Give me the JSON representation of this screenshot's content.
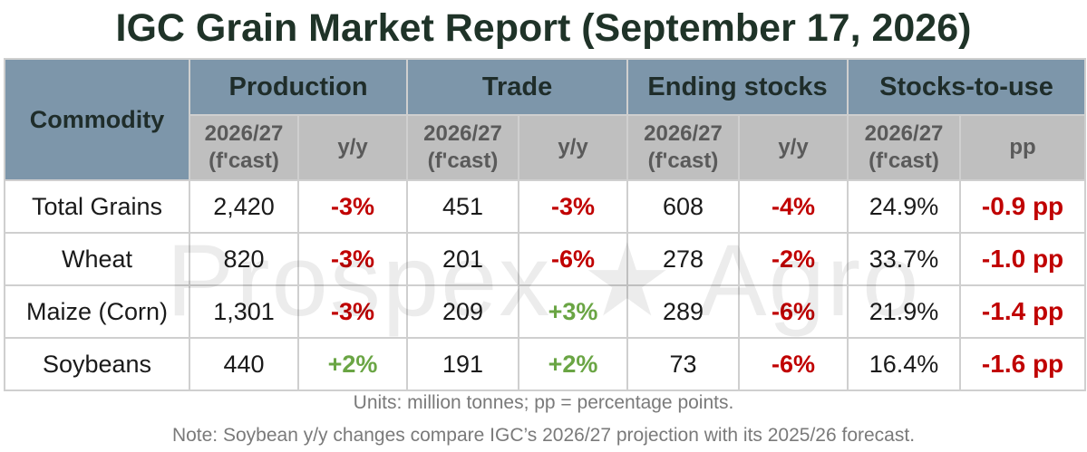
{
  "title": "IGC Grain Market Report (September 17, 2026)",
  "watermark": "Prospex ★ Agro",
  "table": {
    "commodity_header": "Commodity",
    "groups": [
      "Production",
      "Trade",
      "Ending stocks",
      "Stocks-to-use"
    ],
    "sub_forecast_line1": "2026/27",
    "sub_forecast_line2": "(f'cast)",
    "sub_change_yy": "y/y",
    "sub_change_pp": "pp",
    "rows": [
      {
        "name": "Total Grains",
        "production": "2,420",
        "production_yy": "-3%",
        "trade": "451",
        "trade_yy": "-3%",
        "stocks": "608",
        "stocks_yy": "-4%",
        "stu": "24.9%",
        "stu_pp": "-0.9 pp"
      },
      {
        "name": "Wheat",
        "production": "820",
        "production_yy": "-3%",
        "trade": "201",
        "trade_yy": "-6%",
        "stocks": "278",
        "stocks_yy": "-2%",
        "stu": "33.7%",
        "stu_pp": "-1.0 pp"
      },
      {
        "name": "Maize (Corn)",
        "production": "1,301",
        "production_yy": "-3%",
        "trade": "209",
        "trade_yy": "+3%",
        "stocks": "289",
        "stocks_yy": "-6%",
        "stu": "21.9%",
        "stu_pp": "-1.4 pp"
      },
      {
        "name": "Soybeans",
        "production": "440",
        "production_yy": "+2%",
        "trade": "191",
        "trade_yy": "+2%",
        "stocks": "73",
        "stocks_yy": "-6%",
        "stu": "16.4%",
        "stu_pp": "-1.6 pp"
      }
    ]
  },
  "footnotes": {
    "units": "Units: million tonnes; pp = percentage points.",
    "note": "Note: Soybean y/y changes compare IGC’s 2026/27 projection with its 2025/26 forecast."
  },
  "colors": {
    "negative": "#c00000",
    "positive": "#6aa544",
    "header_bg": "#7d96aa",
    "subheader_bg": "#bfbfbf"
  }
}
